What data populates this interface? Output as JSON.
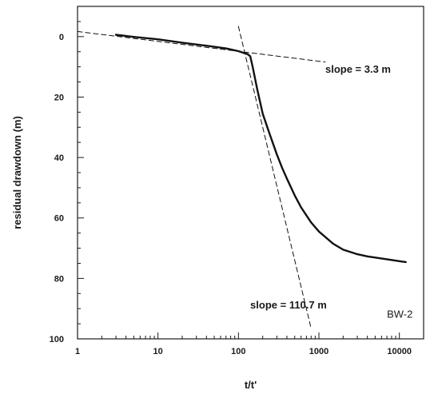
{
  "chart_data": {
    "type": "line",
    "xlabel": "t/t'",
    "ylabel": "residual drawdown (m)",
    "x_scale": "log",
    "xlim": [
      1,
      20000
    ],
    "ylim": [
      100,
      -10
    ],
    "y_inverted": true,
    "grid": false,
    "x_ticks": [
      1,
      10,
      100,
      1000,
      10000
    ],
    "x_tick_labels": [
      "1",
      "10",
      "100",
      "1000",
      "10000"
    ],
    "y_ticks": [
      0,
      20,
      40,
      60,
      80,
      100
    ],
    "y_tick_labels": [
      "0",
      "20",
      "40",
      "60",
      "80",
      "100"
    ],
    "series": [
      {
        "style": "solid",
        "color": "#111111",
        "x": [
          3,
          5,
          10,
          20,
          40,
          70,
          100,
          130,
          140,
          150,
          170,
          200,
          250,
          300,
          350,
          400,
          500,
          600,
          800,
          1000,
          1500,
          2000,
          3000,
          4000,
          6000,
          8000,
          10000,
          12000
        ],
        "y": [
          -0.6,
          0.1,
          0.9,
          2.0,
          3.0,
          3.9,
          4.8,
          5.8,
          6.5,
          10.0,
          17.0,
          25.5,
          33.0,
          39.0,
          43.5,
          47.0,
          52.5,
          56.5,
          61.5,
          64.5,
          68.5,
          70.5,
          72.0,
          72.7,
          73.4,
          73.9,
          74.3,
          74.6
        ]
      },
      {
        "style": "dashed",
        "color": "#111111",
        "x": [
          1,
          1200
        ],
        "y": [
          -1.7,
          8.4
        ]
      },
      {
        "style": "dashed",
        "color": "#111111",
        "x": [
          100,
          800
        ],
        "y": [
          -3.4,
          96.6
        ]
      }
    ],
    "annotations": [
      {
        "text": "slope = 3.3 m",
        "x": 1200,
        "y": 12
      },
      {
        "text": "slope = 110.7 m",
        "x": 140,
        "y": 90
      },
      {
        "text": "BW-2",
        "x": 7000,
        "y": 93
      }
    ]
  }
}
